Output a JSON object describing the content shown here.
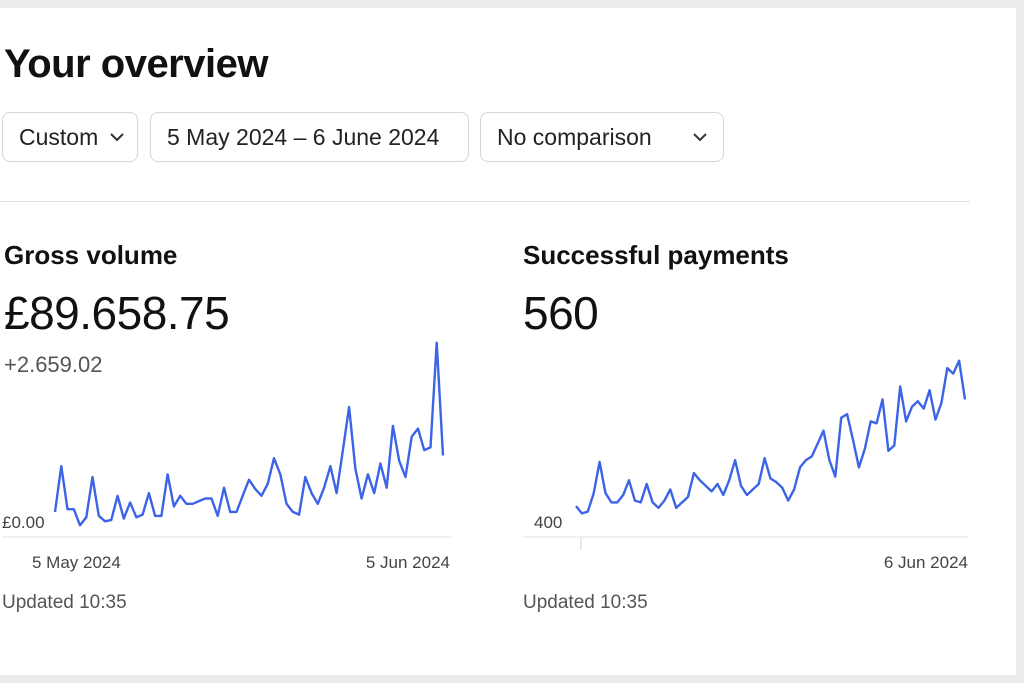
{
  "page": {
    "title": "Your overview"
  },
  "filters": {
    "range": "Custom",
    "dates": "5 May 2024 – 6 June 2024",
    "comparison": "No comparison"
  },
  "colors": {
    "line": "#3b64e6",
    "baseline": "#e3e3e6"
  },
  "gross_volume": {
    "title": "Gross volume",
    "value": "£89.658.75",
    "delta": "+2.659.02",
    "y_label": "£0.00",
    "x_start": "5 May 2024",
    "x_end": "5 Jun 2024",
    "updated": "Updated 10:35"
  },
  "successful_payments": {
    "title": "Successful payments",
    "value": "560",
    "y_label": "400",
    "x_end": "6 Jun 2024",
    "updated": "Updated 10:35"
  },
  "chart_data": [
    {
      "type": "line",
      "title": "Gross volume",
      "y_min_label": "£0.00",
      "x_tick_labels": [
        "5 May 2024",
        "5 Jun 2024"
      ],
      "values": [
        12,
        46,
        14,
        14,
        2,
        8,
        38,
        9,
        5,
        6,
        24,
        7,
        19,
        8,
        10,
        26,
        9,
        9,
        40,
        16,
        24,
        18,
        18,
        20,
        22,
        22,
        9,
        30,
        12,
        12,
        24,
        36,
        29,
        24,
        33,
        52,
        40,
        18,
        12,
        10,
        38,
        26,
        18,
        30,
        46,
        26,
        58,
        90,
        44,
        22,
        40,
        26,
        48,
        30,
        76,
        50,
        38,
        68,
        74,
        58,
        60,
        138,
        54
      ],
      "y_range": [
        0,
        140
      ],
      "grid": false,
      "legend": "none"
    },
    {
      "type": "line",
      "title": "Successful payments",
      "y_min_label": "400",
      "x_tick_labels": [
        "6 Jun 2024"
      ],
      "values": [
        426,
        418,
        420,
        440,
        474,
        440,
        430,
        430,
        438,
        454,
        432,
        430,
        450,
        430,
        424,
        432,
        444,
        424,
        430,
        436,
        462,
        454,
        448,
        442,
        450,
        438,
        454,
        476,
        448,
        438,
        444,
        450,
        478,
        456,
        452,
        446,
        432,
        444,
        468,
        476,
        480,
        494,
        508,
        476,
        458,
        522,
        526,
        498,
        468,
        488,
        518,
        516,
        542,
        486,
        492,
        556,
        518,
        534,
        540,
        532,
        552,
        520,
        538,
        576,
        570,
        584,
        542
      ],
      "y_range": [
        400,
        600
      ],
      "grid": false,
      "legend": "none"
    }
  ]
}
